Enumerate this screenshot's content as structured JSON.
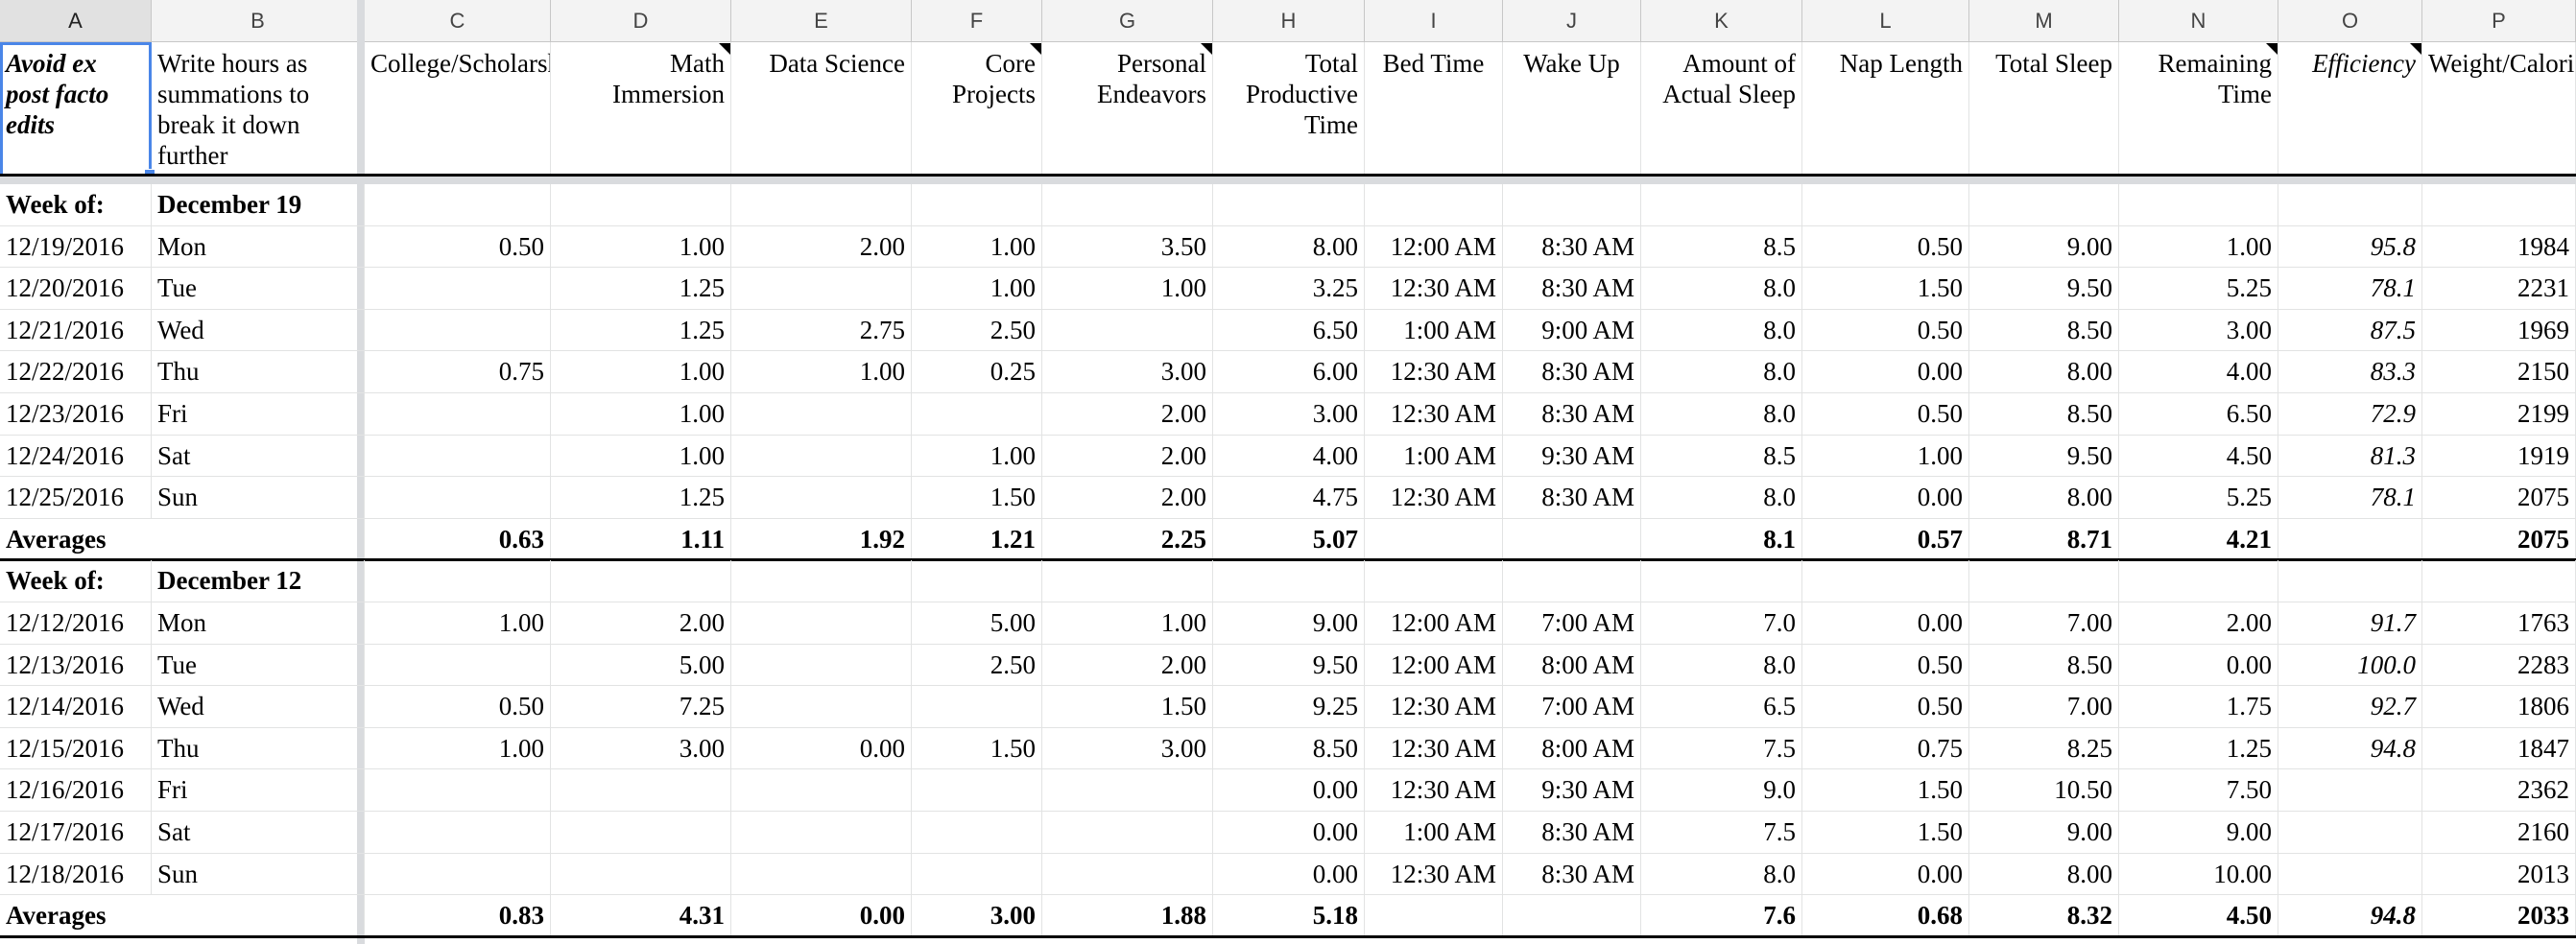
{
  "columns": [
    "A",
    "B",
    "C",
    "D",
    "E",
    "F",
    "G",
    "H",
    "I",
    "J",
    "K",
    "L",
    "M",
    "N",
    "O",
    "P"
  ],
  "headers": {
    "A": "Avoid ex post facto edits",
    "B": "Write hours as summations to break it down further",
    "C": "College/Scholarships/FinAid",
    "D": "Math Immersion",
    "E": "Data Science",
    "F": "Core Projects",
    "G": "Personal Endeavors",
    "H": "Total Productive Time",
    "I": "Bed Time",
    "J": "Wake Up",
    "K": "Amount of Actual Sleep",
    "L": "Nap Length",
    "M": "Total Sleep",
    "N": "Remaining Time",
    "O": "Efficiency",
    "P": "Weight/Calories"
  },
  "weeks": [
    {
      "label": "Week of:",
      "week_name": "December 19",
      "rows": [
        {
          "date": "12/19/2016",
          "day": "Mon",
          "C": "0.50",
          "D": "1.00",
          "E": "2.00",
          "F": "1.00",
          "G": "3.50",
          "H": "8.00",
          "I": "12:00 AM",
          "J": "8:30 AM",
          "K": "8.5",
          "L": "0.50",
          "M": "9.00",
          "N": "1.00",
          "O": "95.8",
          "P": "1984"
        },
        {
          "date": "12/20/2016",
          "day": "Tue",
          "C": "",
          "D": "1.25",
          "E": "",
          "F": "1.00",
          "G": "1.00",
          "H": "3.25",
          "I": "12:30 AM",
          "J": "8:30 AM",
          "K": "8.0",
          "L": "1.50",
          "M": "9.50",
          "N": "5.25",
          "O": "78.1",
          "P": "2231"
        },
        {
          "date": "12/21/2016",
          "day": "Wed",
          "C": "",
          "D": "1.25",
          "E": "2.75",
          "F": "2.50",
          "G": "",
          "H": "6.50",
          "I": "1:00 AM",
          "J": "9:00 AM",
          "K": "8.0",
          "L": "0.50",
          "M": "8.50",
          "N": "3.00",
          "O": "87.5",
          "P": "1969"
        },
        {
          "date": "12/22/2016",
          "day": "Thu",
          "C": "0.75",
          "D": "1.00",
          "E": "1.00",
          "F": "0.25",
          "G": "3.00",
          "H": "6.00",
          "I": "12:30 AM",
          "J": "8:30 AM",
          "K": "8.0",
          "L": "0.00",
          "M": "8.00",
          "N": "4.00",
          "O": "83.3",
          "P": "2150"
        },
        {
          "date": "12/23/2016",
          "day": "Fri",
          "C": "",
          "D": "1.00",
          "E": "",
          "F": "",
          "G": "2.00",
          "H": "3.00",
          "I": "12:30 AM",
          "J": "8:30 AM",
          "K": "8.0",
          "L": "0.50",
          "M": "8.50",
          "N": "6.50",
          "O": "72.9",
          "P": "2199"
        },
        {
          "date": "12/24/2016",
          "day": "Sat",
          "C": "",
          "D": "1.00",
          "E": "",
          "F": "1.00",
          "G": "2.00",
          "H": "4.00",
          "I": "1:00 AM",
          "J": "9:30 AM",
          "K": "8.5",
          "L": "1.00",
          "M": "9.50",
          "N": "4.50",
          "O": "81.3",
          "P": "1919"
        },
        {
          "date": "12/25/2016",
          "day": "Sun",
          "C": "",
          "D": "1.25",
          "E": "",
          "F": "1.50",
          "G": "2.00",
          "H": "4.75",
          "I": "12:30 AM",
          "J": "8:30 AM",
          "K": "8.0",
          "L": "0.00",
          "M": "8.00",
          "N": "5.25",
          "O": "78.1",
          "P": "2075"
        }
      ],
      "averages": {
        "label": "Averages",
        "C": "0.63",
        "D": "1.11",
        "E": "1.92",
        "F": "1.21",
        "G": "2.25",
        "H": "5.07",
        "K": "8.1",
        "L": "0.57",
        "M": "8.71",
        "N": "4.21",
        "O": "",
        "P": "2075"
      }
    },
    {
      "label": "Week of:",
      "week_name": "December 12",
      "rows": [
        {
          "date": "12/12/2016",
          "day": "Mon",
          "C": "1.00",
          "D": "2.00",
          "E": "",
          "F": "5.00",
          "G": "1.00",
          "H": "9.00",
          "I": "12:00 AM",
          "J": "7:00 AM",
          "K": "7.0",
          "L": "0.00",
          "M": "7.00",
          "N": "2.00",
          "O": "91.7",
          "P": "1763"
        },
        {
          "date": "12/13/2016",
          "day": "Tue",
          "C": "",
          "D": "5.00",
          "E": "",
          "F": "2.50",
          "G": "2.00",
          "H": "9.50",
          "I": "12:00 AM",
          "J": "8:00 AM",
          "K": "8.0",
          "L": "0.50",
          "M": "8.50",
          "N": "0.00",
          "O": "100.0",
          "P": "2283"
        },
        {
          "date": "12/14/2016",
          "day": "Wed",
          "C": "0.50",
          "D": "7.25",
          "E": "",
          "F": "",
          "G": "1.50",
          "H": "9.25",
          "I": "12:30 AM",
          "J": "7:00 AM",
          "K": "6.5",
          "L": "0.50",
          "M": "7.00",
          "N": "1.75",
          "O": "92.7",
          "P": "1806"
        },
        {
          "date": "12/15/2016",
          "day": "Thu",
          "C": "1.00",
          "D": "3.00",
          "E": "0.00",
          "F": "1.50",
          "G": "3.00",
          "H": "8.50",
          "I": "12:30 AM",
          "J": "8:00 AM",
          "K": "7.5",
          "L": "0.75",
          "M": "8.25",
          "N": "1.25",
          "O": "94.8",
          "P": "1847"
        },
        {
          "date": "12/16/2016",
          "day": "Fri",
          "C": "",
          "D": "",
          "E": "",
          "F": "",
          "G": "",
          "H": "0.00",
          "I": "12:30 AM",
          "J": "9:30 AM",
          "K": "9.0",
          "L": "1.50",
          "M": "10.50",
          "N": "7.50",
          "O": "",
          "P": "2362"
        },
        {
          "date": "12/17/2016",
          "day": "Sat",
          "C": "",
          "D": "",
          "E": "",
          "F": "",
          "G": "",
          "H": "0.00",
          "I": "1:00 AM",
          "J": "8:30 AM",
          "K": "7.5",
          "L": "1.50",
          "M": "9.00",
          "N": "9.00",
          "O": "",
          "P": "2160"
        },
        {
          "date": "12/18/2016",
          "day": "Sun",
          "C": "",
          "D": "",
          "E": "",
          "F": "",
          "G": "",
          "H": "0.00",
          "I": "12:30 AM",
          "J": "8:30 AM",
          "K": "8.0",
          "L": "0.00",
          "M": "8.00",
          "N": "10.00",
          "O": "",
          "P": "2013"
        }
      ],
      "averages": {
        "label": "Averages",
        "C": "0.83",
        "D": "4.31",
        "E": "0.00",
        "F": "3.00",
        "G": "1.88",
        "H": "5.18",
        "K": "7.6",
        "L": "0.68",
        "M": "8.32",
        "N": "4.50",
        "O": "94.8",
        "P": "2033"
      }
    }
  ]
}
